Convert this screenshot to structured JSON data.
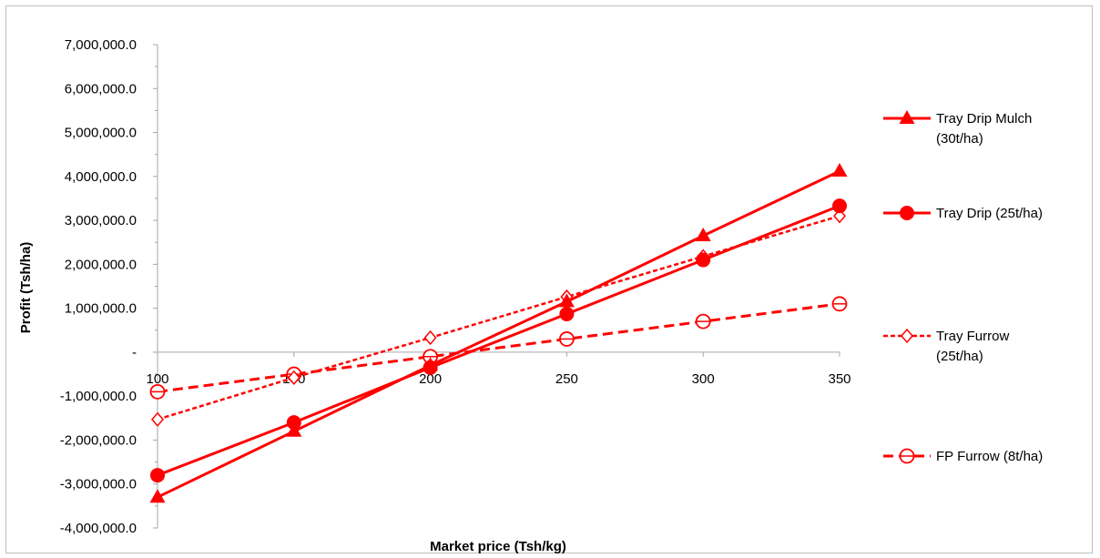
{
  "chart_data": {
    "type": "line",
    "title": "",
    "xlabel": "Market price (Tsh/kg)",
    "ylabel": "Profit (Tsh/ha)",
    "x": [
      100,
      150,
      200,
      250,
      300,
      350
    ],
    "x_tick_labels": [
      "100",
      "150",
      "200",
      "250",
      "300",
      "350"
    ],
    "ylim": [
      -4000000,
      7000000
    ],
    "y_ticks": [
      -4000000,
      -3000000,
      -2000000,
      -1000000,
      0,
      1000000,
      2000000,
      3000000,
      4000000,
      5000000,
      6000000,
      7000000
    ],
    "y_tick_labels": [
      "-4,000,000.0",
      "-3,000,000.0",
      "-2,000,000.0",
      "-1,000,000.0",
      "-",
      "1,000,000.0",
      "2,000,000.0",
      "3,000,000.0",
      "4,000,000.0",
      "5,000,000.0",
      "6,000,000.0",
      "7,000,000.0"
    ],
    "grid": false,
    "legend_position": "right",
    "series": [
      {
        "name": "Tray Drip Mulch (30t/ha)",
        "legend_lines": [
          "Tray Drip Mulch",
          "(30t/ha)"
        ],
        "values": [
          -3300000,
          -1800000,
          -300000,
          1150000,
          2650000,
          4120000
        ],
        "color": "#ff0000",
        "marker": "triangle",
        "dash": "solid"
      },
      {
        "name": "Tray Drip  (25t/ha)",
        "legend_lines": [
          "Tray Drip  (25t/ha)"
        ],
        "values": [
          -2800000,
          -1600000,
          -350000,
          870000,
          2100000,
          3330000
        ],
        "color": "#ff0000",
        "marker": "circle",
        "dash": "solid"
      },
      {
        "name": "Tray Furrow (25t/ha)",
        "legend_lines": [
          "Tray Furrow",
          "(25t/ha)"
        ],
        "values": [
          -1530000,
          -580000,
          330000,
          1260000,
          2180000,
          3100000
        ],
        "color": "#ff0000",
        "marker": "diamond-open",
        "dash": "dotted"
      },
      {
        "name": "FP Furrow (8t/ha)",
        "legend_lines": [
          "FP Furrow (8t/ha)"
        ],
        "values": [
          -900000,
          -500000,
          -100000,
          300000,
          700000,
          1100000
        ],
        "color": "#ff0000",
        "marker": "circle-open",
        "dash": "dashed"
      }
    ]
  }
}
